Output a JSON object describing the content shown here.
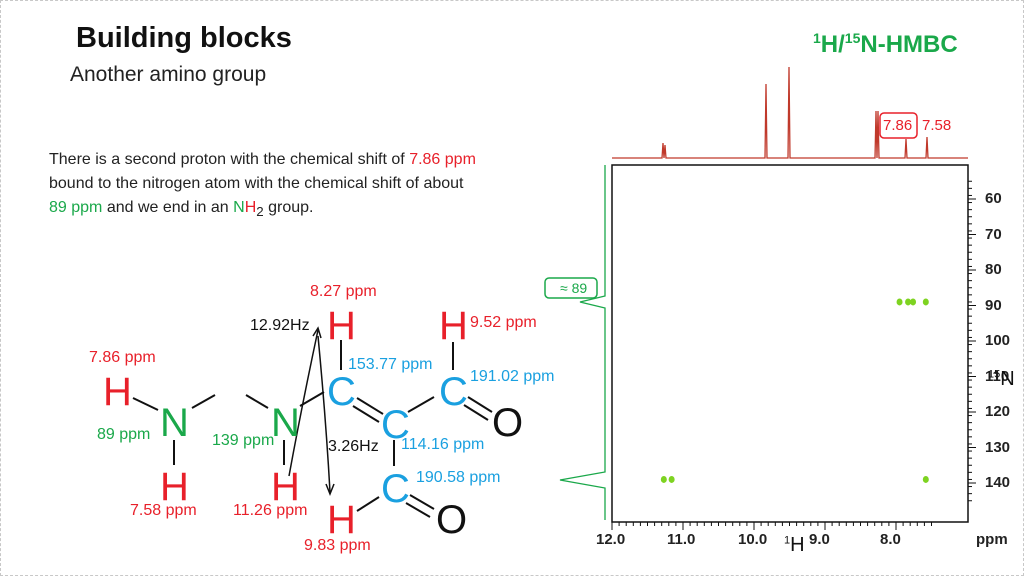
{
  "slide": {
    "title": "Building blocks",
    "subtitle": "Another amino group",
    "badge_sup1": "1",
    "badge_h": "H/",
    "badge_sup2": "15",
    "badge_n": "N-HMBC"
  },
  "text": {
    "p1": "There is a second proton with the chemical shift of ",
    "p1_val": "7.86 ppm",
    "p2": "bound to the nitrogen atom with the chemical shift of about",
    "p3_val": "89 ppm",
    "p3": " and we end in an ",
    "p3_n": "N",
    "p3_h": "H",
    "p3_sub": "2",
    "p3_end": " group."
  },
  "molecule": {
    "atom_h": "H",
    "atom_n": "N",
    "atom_c": "C",
    "atom_o": "O",
    "h_nh2_top": "7.86 ppm",
    "n_nh2": "89 ppm",
    "h_nh2_bottom": "7.58 ppm",
    "n_nh": "139 ppm",
    "h_nh": "11.26 ppm",
    "h_top_left": "8.27 ppm",
    "coupling_top": "12.92Hz",
    "h_top_right": "9.52 ppm",
    "c1": "153.77 ppm",
    "c2": "191.02 ppm",
    "c3": "114.16 ppm",
    "coupling_mid": "3.26Hz",
    "c4": "190.58 ppm",
    "h_bottom": "9.83 ppm"
  },
  "spectrum": {
    "peak_label_boxed": "7.86",
    "peak_label_plain": "7.58",
    "n_annotation": "≈ 89",
    "y_ticks": [
      "60",
      "70",
      "80",
      "90",
      "100",
      "110",
      "120",
      "130",
      "140"
    ],
    "x_ticks": [
      "12.0",
      "11.0",
      "10.0",
      "9.0",
      "8.0"
    ],
    "x_unit": "ppm",
    "x_axis_sup": "1",
    "x_axis_label": "H",
    "y_axis_sup": "15",
    "y_axis_label": "N",
    "colors": {
      "proton_trace": "#c0392b",
      "nitrogen_trace": "#1aa84a",
      "cross_peak": "#7ed321"
    },
    "cross_peaks": [
      {
        "h": 7.95,
        "n": 89
      },
      {
        "h": 7.83,
        "n": 89
      },
      {
        "h": 7.76,
        "n": 89
      },
      {
        "h": 7.58,
        "n": 89
      },
      {
        "h": 11.27,
        "n": 139
      },
      {
        "h": 11.16,
        "n": 139
      },
      {
        "h": 7.58,
        "n": 139
      }
    ]
  }
}
